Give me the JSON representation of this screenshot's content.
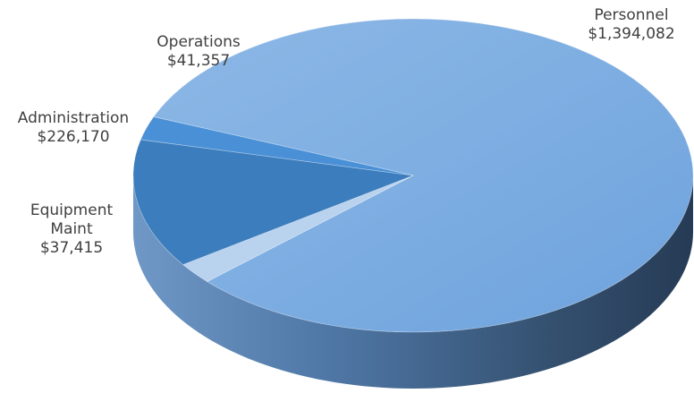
{
  "chart_data": {
    "type": "pie",
    "title": "",
    "categories": [
      "Personnel",
      "Equipment Maint",
      "Administration",
      "Operations"
    ],
    "values": [
      1394082,
      37415,
      226170,
      41357
    ],
    "data_labels": [
      {
        "name_lines": [
          "Personnel"
        ],
        "value": "$1,394,082"
      },
      {
        "name_lines": [
          "Equipment",
          "Maint"
        ],
        "value": "$37,415"
      },
      {
        "name_lines": [
          "Administration"
        ],
        "value": "$226,170"
      },
      {
        "name_lines": [
          "Operations"
        ],
        "value": "$41,357"
      }
    ],
    "colors": [
      "#7aace2",
      "#b9d2ee",
      "#3c7dbd",
      "#4a90d6"
    ],
    "side_colors": [
      "#5379a6",
      "#8aa6c8",
      "#2f5d8c",
      "#3a6ea6"
    ],
    "style": "3d",
    "legend": "none"
  }
}
